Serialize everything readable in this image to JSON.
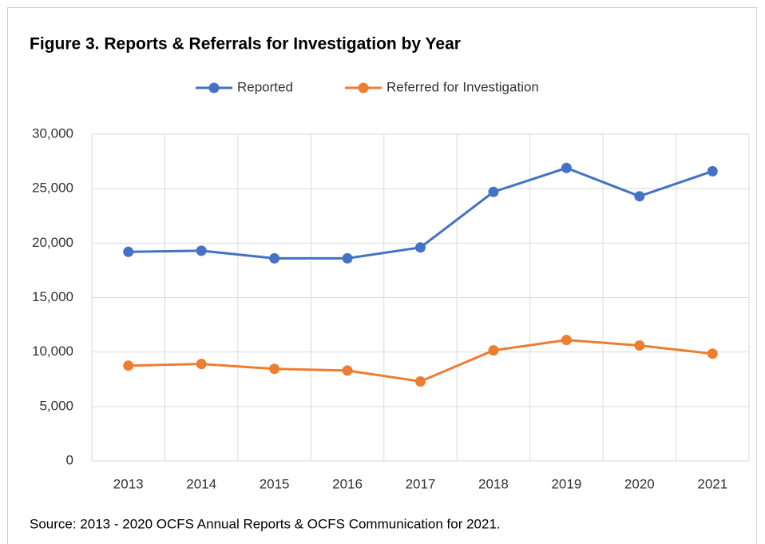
{
  "chart_data": {
    "type": "line",
    "title": "Figure 3. Reports & Referrals for Investigation by Year",
    "categories": [
      "2013",
      "2014",
      "2015",
      "2016",
      "2017",
      "2018",
      "2019",
      "2020",
      "2021"
    ],
    "series": [
      {
        "name": "Reported",
        "color": "#4472c4",
        "values": [
          19200,
          19300,
          18600,
          18600,
          19600,
          24700,
          26900,
          24300,
          26600
        ]
      },
      {
        "name": "Referred for Investigation",
        "color": "#ed7d31",
        "values": [
          8750,
          8900,
          8450,
          8300,
          7300,
          10150,
          11100,
          10600,
          9850
        ]
      }
    ],
    "ylim": [
      0,
      30000
    ],
    "yticks": [
      0,
      {
        "value": 5000,
        "label": "5,000"
      },
      {
        "value": 10000,
        "label": "10,000"
      },
      {
        "value": 15000,
        "label": "15,000"
      },
      {
        "value": 20000,
        "label": "20,000"
      },
      {
        "value": 25000,
        "label": "25,000"
      },
      {
        "value": 30000,
        "label": "30,000"
      }
    ],
    "grid": true,
    "legend": "top",
    "source": "Source: 2013 - 2020 OCFS Annual Reports & OCFS Communication for 2021."
  }
}
